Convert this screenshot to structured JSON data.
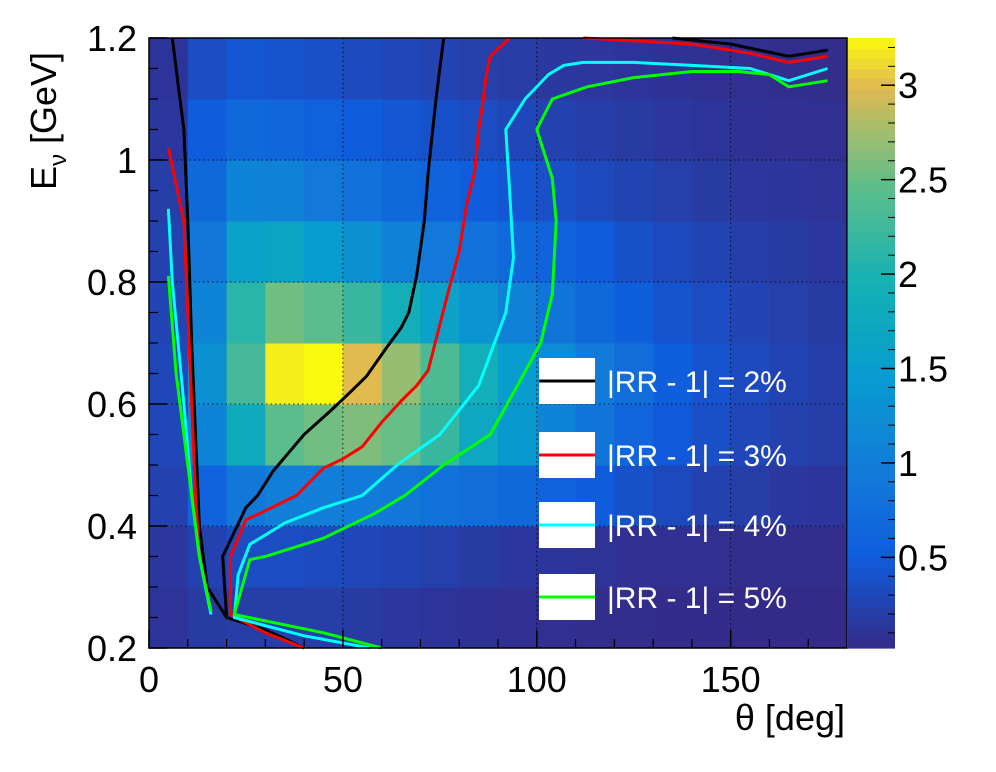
{
  "chart_data": {
    "type": "heatmap",
    "title": "",
    "xlabel": "θ [deg]",
    "ylabel": "E",
    "ylabel_sub": "ν",
    "ylabel_unit": " [GeV]",
    "xlim": [
      0,
      180
    ],
    "ylim": [
      0.2,
      1.2
    ],
    "x_ticks": [
      {
        "v": 0,
        "label": "0"
      },
      {
        "v": 50,
        "label": "50"
      },
      {
        "v": 100,
        "label": "100"
      },
      {
        "v": 150,
        "label": "150"
      }
    ],
    "y_ticks": [
      {
        "v": 0.2,
        "label": "0.2"
      },
      {
        "v": 0.4,
        "label": "0.4"
      },
      {
        "v": 0.6,
        "label": "0.6"
      },
      {
        "v": 0.8,
        "label": "0.8"
      },
      {
        "v": 1.0,
        "label": "1"
      },
      {
        "v": 1.2,
        "label": "1.2"
      }
    ],
    "grid": true,
    "x_bin_width": 10,
    "y_bins": [
      0.2,
      0.3,
      0.4,
      0.5,
      0.6,
      0.7,
      0.8,
      0.9,
      1.0,
      1.1,
      1.2
    ],
    "z_range": [
      0.02,
      3.25
    ],
    "colorbar_ticks": [
      {
        "v": 0.5,
        "label": "0.5"
      },
      {
        "v": 1.0,
        "label": "1"
      },
      {
        "v": 1.5,
        "label": "1.5"
      },
      {
        "v": 2.0,
        "label": "2"
      },
      {
        "v": 2.5,
        "label": "2.5"
      },
      {
        "v": 3.0,
        "label": "3"
      }
    ],
    "z_rows": [
      [
        0.12,
        0.18,
        0.2,
        0.2,
        0.2,
        0.18,
        0.15,
        0.12,
        0.1,
        0.08,
        0.07,
        0.06,
        0.05,
        0.04,
        0.04,
        0.03,
        0.03,
        0.03
      ],
      [
        0.15,
        0.25,
        0.35,
        0.35,
        0.33,
        0.3,
        0.27,
        0.22,
        0.18,
        0.15,
        0.13,
        0.11,
        0.09,
        0.08,
        0.07,
        0.06,
        0.05,
        0.05
      ],
      [
        0.25,
        0.6,
        0.9,
        1.0,
        1.0,
        0.95,
        0.9,
        0.82,
        0.75,
        0.7,
        0.6,
        0.5,
        0.4,
        0.32,
        0.25,
        0.2,
        0.16,
        0.13
      ],
      [
        0.3,
        1.1,
        1.8,
        2.45,
        2.55,
        2.6,
        2.5,
        2.2,
        1.7,
        1.45,
        1.1,
        0.85,
        0.62,
        0.48,
        0.38,
        0.3,
        0.24,
        0.2
      ],
      [
        0.3,
        1.3,
        2.3,
        3.2,
        3.25,
        3.0,
        2.7,
        2.35,
        1.9,
        1.5,
        1.2,
        0.95,
        0.75,
        0.55,
        0.42,
        0.33,
        0.26,
        0.21
      ],
      [
        0.28,
        1.1,
        2.1,
        2.55,
        2.45,
        2.2,
        1.9,
        1.6,
        1.35,
        1.05,
        0.85,
        0.7,
        0.55,
        0.42,
        0.35,
        0.28,
        0.22,
        0.18
      ],
      [
        0.25,
        0.9,
        1.6,
        1.65,
        1.5,
        1.3,
        1.05,
        0.92,
        0.82,
        0.7,
        0.6,
        0.5,
        0.4,
        0.32,
        0.26,
        0.21,
        0.18,
        0.15
      ],
      [
        0.2,
        0.7,
        1.1,
        1.05,
        0.92,
        0.8,
        0.7,
        0.6,
        0.52,
        0.45,
        0.38,
        0.32,
        0.27,
        0.22,
        0.18,
        0.15,
        0.13,
        0.11
      ],
      [
        0.15,
        0.5,
        0.7,
        0.65,
        0.58,
        0.5,
        0.45,
        0.4,
        0.35,
        0.3,
        0.25,
        0.21,
        0.18,
        0.15,
        0.12,
        0.1,
        0.09,
        0.08
      ],
      [
        0.12,
        0.35,
        0.45,
        0.42,
        0.38,
        0.33,
        0.3,
        0.26,
        0.22,
        0.19,
        0.16,
        0.14,
        0.12,
        0.1,
        0.08,
        0.07,
        0.06,
        0.05
      ]
    ],
    "series": [
      {
        "name": "|RR - 1| = 2%",
        "color": "#000000",
        "points": [
          [
            40,
            0.2
          ],
          [
            30,
            0.23
          ],
          [
            20,
            0.25
          ],
          [
            19,
            0.35
          ],
          [
            25,
            0.43
          ],
          [
            28,
            0.45
          ],
          [
            32,
            0.49
          ],
          [
            36,
            0.52
          ],
          [
            40,
            0.55
          ],
          [
            47,
            0.59
          ],
          [
            52,
            0.62
          ],
          [
            56,
            0.645
          ],
          [
            61,
            0.69
          ],
          [
            65,
            0.725
          ],
          [
            67,
            0.75
          ],
          [
            69,
            0.81
          ],
          [
            71,
            0.9
          ],
          [
            72,
            0.98
          ],
          [
            74,
            1.1
          ],
          [
            76,
            1.2
          ],
          [
            null,
            null
          ],
          [
            135,
            1.2
          ],
          [
            150,
            1.19
          ],
          [
            165,
            1.17
          ],
          [
            175,
            1.18
          ],
          [
            null,
            null
          ],
          [
            20,
            0.25
          ],
          [
            15,
            0.3
          ],
          [
            13,
            0.4
          ],
          [
            12,
            0.55
          ],
          [
            11,
            0.7
          ],
          [
            10,
            0.9
          ],
          [
            9,
            1.05
          ],
          [
            7,
            1.15
          ],
          [
            6,
            1.2
          ]
        ]
      },
      {
        "name": "|RR - 1| = 3%",
        "color": "#ff0000",
        "points": [
          [
            40,
            0.2
          ],
          [
            30,
            0.225
          ],
          [
            21,
            0.255
          ],
          [
            21,
            0.35
          ],
          [
            25,
            0.41
          ],
          [
            30,
            0.425
          ],
          [
            38,
            0.45
          ],
          [
            45,
            0.495
          ],
          [
            50,
            0.51
          ],
          [
            55,
            0.53
          ],
          [
            60,
            0.57
          ],
          [
            65,
            0.605
          ],
          [
            69,
            0.63
          ],
          [
            72,
            0.655
          ],
          [
            77,
            0.78
          ],
          [
            80,
            0.85
          ],
          [
            82,
            0.93
          ],
          [
            84,
            0.98
          ],
          [
            85,
            1.05
          ],
          [
            86,
            1.09
          ],
          [
            87,
            1.14
          ],
          [
            88,
            1.17
          ],
          [
            93,
            1.2
          ],
          [
            null,
            null
          ],
          [
            112,
            1.2
          ],
          [
            140,
            1.19
          ],
          [
            155,
            1.175
          ],
          [
            165,
            1.16
          ],
          [
            175,
            1.17
          ],
          [
            null,
            null
          ],
          [
            16,
            0.26
          ],
          [
            13,
            0.35
          ],
          [
            12,
            0.45
          ],
          [
            11,
            0.6
          ],
          [
            10,
            0.75
          ],
          [
            9,
            0.9
          ],
          [
            5,
            1.02
          ]
        ]
      },
      {
        "name": "|RR - 1| = 4%",
        "color": "#00ffff",
        "points": [
          [
            57,
            0.2
          ],
          [
            40,
            0.22
          ],
          [
            22,
            0.25
          ],
          [
            23,
            0.32
          ],
          [
            26,
            0.37
          ],
          [
            30,
            0.385
          ],
          [
            35,
            0.405
          ],
          [
            45,
            0.43
          ],
          [
            55,
            0.45
          ],
          [
            64,
            0.5
          ],
          [
            75,
            0.55
          ],
          [
            85,
            0.63
          ],
          [
            92,
            0.75
          ],
          [
            94,
            0.84
          ],
          [
            93,
            0.95
          ],
          [
            92,
            1.05
          ],
          [
            97,
            1.1
          ],
          [
            103,
            1.14
          ],
          [
            107,
            1.155
          ],
          [
            112,
            1.16
          ],
          [
            125,
            1.16
          ],
          [
            140,
            1.155
          ],
          [
            155,
            1.15
          ],
          [
            165,
            1.13
          ],
          [
            175,
            1.15
          ],
          [
            null,
            null
          ],
          [
            16,
            0.255
          ],
          [
            13,
            0.35
          ],
          [
            11,
            0.45
          ],
          [
            9,
            0.6
          ],
          [
            6,
            0.8
          ],
          [
            5,
            0.92
          ]
        ]
      },
      {
        "name": "|RR - 1| = 5%",
        "color": "#00ff00",
        "points": [
          [
            60,
            0.2
          ],
          [
            45,
            0.225
          ],
          [
            22,
            0.255
          ],
          [
            26,
            0.345
          ],
          [
            30,
            0.35
          ],
          [
            45,
            0.38
          ],
          [
            58,
            0.42
          ],
          [
            66,
            0.45
          ],
          [
            76,
            0.5
          ],
          [
            88,
            0.55
          ],
          [
            95,
            0.63
          ],
          [
            101,
            0.7
          ],
          [
            104,
            0.78
          ],
          [
            105,
            0.9
          ],
          [
            104,
            0.97
          ],
          [
            100,
            1.05
          ],
          [
            104,
            1.1
          ],
          [
            113,
            1.12
          ],
          [
            125,
            1.135
          ],
          [
            140,
            1.145
          ],
          [
            152,
            1.145
          ],
          [
            160,
            1.14
          ],
          [
            165,
            1.12
          ],
          [
            175,
            1.13
          ],
          [
            null,
            null
          ],
          [
            16,
            0.26
          ],
          [
            13,
            0.35
          ],
          [
            11,
            0.45
          ],
          [
            9,
            0.55
          ],
          [
            7,
            0.65
          ],
          [
            5,
            0.81
          ]
        ]
      }
    ]
  }
}
